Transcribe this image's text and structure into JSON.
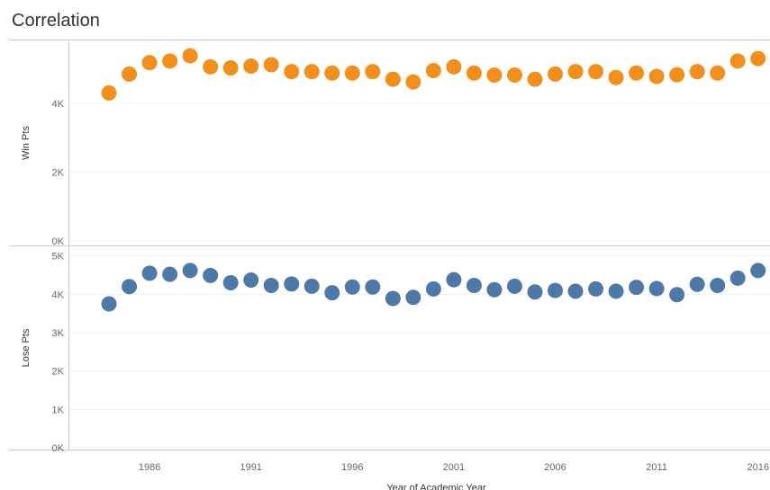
{
  "title": "Correlation",
  "colors": {
    "win": "#f28e1c",
    "lose": "#4e79a7",
    "grid": "#f0f0f0",
    "axis": "#c8c8c8"
  },
  "chart_data": {
    "type": "scatter",
    "title": "Correlation",
    "xlabel": "Year of Academic Year",
    "x_ticks": [
      "1986",
      "1991",
      "1996",
      "2001",
      "2006",
      "2011",
      "2016"
    ],
    "x": [
      1984,
      1985,
      1986,
      1987,
      1988,
      1989,
      1990,
      1991,
      1992,
      1993,
      1994,
      1995,
      1996,
      1997,
      1998,
      1999,
      2000,
      2001,
      2002,
      2003,
      2004,
      2005,
      2006,
      2007,
      2008,
      2009,
      2010,
      2011,
      2012,
      2013,
      2014,
      2015,
      2016
    ],
    "xlim": [
      1982,
      2016.5
    ],
    "panels": [
      {
        "name": "Win Pts",
        "ylabel": "Win Pts",
        "ylim": [
          0,
          5800
        ],
        "y_ticks": [
          {
            "v": 0,
            "label": "0K"
          },
          {
            "v": 2000,
            "label": "2K"
          },
          {
            "v": 4000,
            "label": "4K"
          }
        ],
        "color": "win",
        "values": [
          4300,
          4850,
          5180,
          5230,
          5380,
          5060,
          5030,
          5080,
          5120,
          4920,
          4920,
          4880,
          4880,
          4920,
          4700,
          4620,
          4950,
          5060,
          4880,
          4820,
          4820,
          4700,
          4850,
          4920,
          4920,
          4750,
          4880,
          4780,
          4830,
          4920,
          4880,
          5230,
          5300
        ]
      },
      {
        "name": "Lose Pts",
        "ylabel": "Lose Pts",
        "ylim": [
          0,
          5250
        ],
        "y_ticks": [
          {
            "v": 0,
            "label": "0K"
          },
          {
            "v": 1000,
            "label": "1K"
          },
          {
            "v": 2000,
            "label": "2K"
          },
          {
            "v": 3000,
            "label": "3K"
          },
          {
            "v": 4000,
            "label": "4K"
          },
          {
            "v": 5000,
            "label": "5K"
          }
        ],
        "color": "lose",
        "values": [
          3750,
          4200,
          4550,
          4520,
          4620,
          4490,
          4300,
          4370,
          4230,
          4270,
          4210,
          4040,
          4190,
          4190,
          3890,
          3920,
          4140,
          4380,
          4230,
          4120,
          4210,
          4060,
          4100,
          4080,
          4140,
          4080,
          4180,
          4150,
          3990,
          4260,
          4230,
          4420,
          4620
        ]
      }
    ],
    "grid": true
  }
}
